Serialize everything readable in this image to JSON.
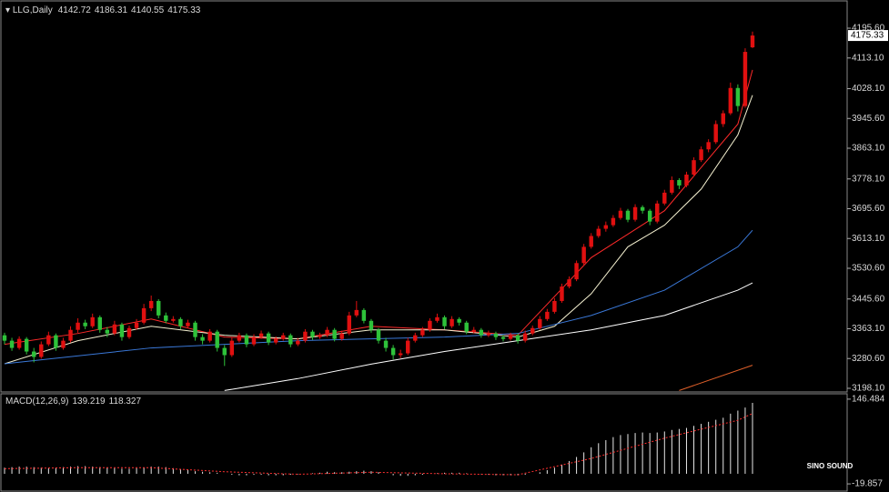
{
  "chart_data": [
    {
      "type": "candlestick",
      "title": "LLG,Daily",
      "up_color": "#e01010",
      "down_color": "#2ec23a",
      "ohlc": [
        [
          3345,
          3352,
          3320,
          3330
        ],
        [
          3330,
          3338,
          3302,
          3310
        ],
        [
          3310,
          3342,
          3305,
          3335
        ],
        [
          3335,
          3340,
          3292,
          3300
        ],
        [
          3300,
          3310,
          3270,
          3285
        ],
        [
          3285,
          3328,
          3280,
          3320
        ],
        [
          3320,
          3355,
          3315,
          3345
        ],
        [
          3345,
          3350,
          3302,
          3310
        ],
        [
          3310,
          3338,
          3305,
          3330
        ],
        [
          3330,
          3370,
          3325,
          3360
        ],
        [
          3360,
          3392,
          3352,
          3380
        ],
        [
          3380,
          3388,
          3362,
          3370
        ],
        [
          3370,
          3405,
          3365,
          3395
        ],
        [
          3395,
          3400,
          3352,
          3360
        ],
        [
          3360,
          3368,
          3340,
          3350
        ],
        [
          3350,
          3385,
          3345,
          3375
        ],
        [
          3375,
          3380,
          3330,
          3340
        ],
        [
          3340,
          3372,
          3335,
          3365
        ],
        [
          3365,
          3390,
          3360,
          3380
        ],
        [
          3380,
          3432,
          3375,
          3420
        ],
        [
          3420,
          3455,
          3412,
          3440
        ],
        [
          3440,
          3445,
          3392,
          3400
        ],
        [
          3400,
          3408,
          3378,
          3385
        ],
        [
          3385,
          3398,
          3380,
          3390
        ],
        [
          3390,
          3395,
          3362,
          3370
        ],
        [
          3370,
          3388,
          3365,
          3380
        ],
        [
          3380,
          3385,
          3330,
          3340
        ],
        [
          3340,
          3348,
          3320,
          3330
        ],
        [
          3330,
          3362,
          3325,
          3355
        ],
        [
          3355,
          3360,
          3300,
          3310
        ],
        [
          3310,
          3318,
          3260,
          3290
        ],
        [
          3290,
          3338,
          3285,
          3330
        ],
        [
          3330,
          3352,
          3325,
          3345
        ],
        [
          3345,
          3350,
          3312,
          3320
        ],
        [
          3320,
          3348,
          3315,
          3340
        ],
        [
          3340,
          3358,
          3335,
          3350
        ],
        [
          3350,
          3355,
          3318,
          3325
        ],
        [
          3325,
          3342,
          3320,
          3335
        ],
        [
          3335,
          3352,
          3330,
          3345
        ],
        [
          3345,
          3350,
          3312,
          3320
        ],
        [
          3320,
          3338,
          3315,
          3330
        ],
        [
          3330,
          3362,
          3325,
          3355
        ],
        [
          3355,
          3360,
          3332,
          3340
        ],
        [
          3340,
          3352,
          3335,
          3345
        ],
        [
          3345,
          3368,
          3340,
          3360
        ],
        [
          3360,
          3365,
          3328,
          3335
        ],
        [
          3335,
          3358,
          3330,
          3350
        ],
        [
          3350,
          3410,
          3345,
          3400
        ],
        [
          3400,
          3440,
          3395,
          3415
        ],
        [
          3415,
          3420,
          3378,
          3385
        ],
        [
          3385,
          3390,
          3352,
          3360
        ],
        [
          3360,
          3365,
          3322,
          3330
        ],
        [
          3330,
          3338,
          3300,
          3310
        ],
        [
          3310,
          3318,
          3278,
          3290
        ],
        [
          3290,
          3305,
          3282,
          3295
        ],
        [
          3295,
          3338,
          3290,
          3330
        ],
        [
          3330,
          3352,
          3325,
          3345
        ],
        [
          3345,
          3368,
          3340,
          3360
        ],
        [
          3360,
          3392,
          3355,
          3385
        ],
        [
          3385,
          3405,
          3380,
          3395
        ],
        [
          3395,
          3400,
          3362,
          3370
        ],
        [
          3370,
          3398,
          3365,
          3390
        ],
        [
          3390,
          3395,
          3372,
          3380
        ],
        [
          3380,
          3385,
          3348,
          3355
        ],
        [
          3355,
          3368,
          3350,
          3360
        ],
        [
          3360,
          3365,
          3338,
          3345
        ],
        [
          3345,
          3358,
          3340,
          3350
        ],
        [
          3350,
          3355,
          3332,
          3340
        ],
        [
          3340,
          3345,
          3328,
          3335
        ],
        [
          3335,
          3352,
          3330,
          3345
        ],
        [
          3345,
          3350,
          3322,
          3330
        ],
        [
          3330,
          3358,
          3325,
          3350
        ],
        [
          3350,
          3372,
          3345,
          3365
        ],
        [
          3365,
          3398,
          3360,
          3390
        ],
        [
          3390,
          3418,
          3385,
          3410
        ],
        [
          3410,
          3448,
          3405,
          3440
        ],
        [
          3440,
          3488,
          3435,
          3480
        ],
        [
          3480,
          3508,
          3475,
          3500
        ],
        [
          3500,
          3552,
          3495,
          3545
        ],
        [
          3545,
          3598,
          3540,
          3590
        ],
        [
          3590,
          3628,
          3585,
          3620
        ],
        [
          3620,
          3648,
          3615,
          3640
        ],
        [
          3640,
          3660,
          3632,
          3650
        ],
        [
          3650,
          3678,
          3645,
          3670
        ],
        [
          3670,
          3698,
          3665,
          3690
        ],
        [
          3690,
          3695,
          3658,
          3665
        ],
        [
          3665,
          3708,
          3660,
          3700
        ],
        [
          3700,
          3705,
          3682,
          3690
        ],
        [
          3690,
          3695,
          3650,
          3660
        ],
        [
          3660,
          3718,
          3655,
          3710
        ],
        [
          3710,
          3748,
          3705,
          3740
        ],
        [
          3740,
          3785,
          3735,
          3775
        ],
        [
          3775,
          3780,
          3750,
          3760
        ],
        [
          3760,
          3798,
          3755,
          3790
        ],
        [
          3790,
          3838,
          3785,
          3830
        ],
        [
          3830,
          3868,
          3825,
          3860
        ],
        [
          3860,
          3888,
          3852,
          3880
        ],
        [
          3880,
          3940,
          3875,
          3930
        ],
        [
          3930,
          3968,
          3922,
          3960
        ],
        [
          3960,
          4045,
          3955,
          4030
        ],
        [
          4030,
          4040,
          3965,
          3980
        ],
        [
          3980,
          4140,
          3975,
          4130
        ],
        [
          4142.72,
          4186.31,
          4140.55,
          4175.33
        ]
      ],
      "lines": [
        {
          "color": "#ff2a2a",
          "x": [
            0,
            10,
            20,
            30,
            40,
            50,
            60,
            70,
            80,
            90,
            100,
            102
          ],
          "values": [
            3320,
            3350,
            3390,
            3340,
            3335,
            3370,
            3360,
            3345,
            3560,
            3690,
            3930,
            4080
          ]
        },
        {
          "color": "#f4f0d0",
          "x": [
            0,
            10,
            20,
            30,
            40,
            50,
            60,
            65,
            70,
            75,
            80,
            85,
            90,
            95,
            100,
            102
          ],
          "values": [
            3266,
            3330,
            3370,
            3345,
            3335,
            3360,
            3360,
            3350,
            3340,
            3370,
            3460,
            3590,
            3650,
            3750,
            3900,
            4010
          ]
        },
        {
          "color": "#3a78d8",
          "x": [
            0,
            20,
            40,
            60,
            70,
            80,
            90,
            100,
            102
          ],
          "values": [
            3266,
            3310,
            3330,
            3340,
            3350,
            3400,
            3470,
            3590,
            3636
          ]
        },
        {
          "color": "#ffffff",
          "x": [
            30,
            40,
            50,
            60,
            70,
            80,
            90,
            100,
            102
          ],
          "values": [
            3192,
            3225,
            3265,
            3300,
            3330,
            3360,
            3400,
            3470,
            3490
          ]
        },
        {
          "color": "#e0602a",
          "x": [
            92,
            102
          ],
          "values": [
            3192,
            3262
          ]
        }
      ],
      "ylim": [
        3190.5,
        4268.7
      ],
      "yticks": [
        {
          "value": 4195.6,
          "label": "4195.60"
        },
        {
          "value": 4113.1,
          "label": "4113.10"
        },
        {
          "value": 4028.1,
          "label": "4028.10"
        },
        {
          "value": 3945.6,
          "label": "3945.60"
        },
        {
          "value": 3863.1,
          "label": "3863.10"
        },
        {
          "value": 3778.1,
          "label": "3778.10"
        },
        {
          "value": 3695.6,
          "label": "3695.60"
        },
        {
          "value": 3613.1,
          "label": "3613.10"
        },
        {
          "value": 3530.6,
          "label": "3530.60"
        },
        {
          "value": 3445.6,
          "label": "3445.60"
        },
        {
          "value": 3363.1,
          "label": "3363.10"
        },
        {
          "value": 3280.6,
          "label": "3280.60"
        },
        {
          "value": 3198.1,
          "label": "3198.10"
        }
      ]
    },
    {
      "type": "macd",
      "title": "MACD(12,26,9)",
      "color": "#e8e8e8",
      "values": [
        12,
        13,
        14,
        14,
        13,
        12,
        11,
        12,
        13,
        14,
        15,
        15,
        14,
        13,
        12,
        11,
        10,
        10,
        11,
        12,
        14,
        14,
        13,
        11,
        9,
        7,
        5,
        4,
        3,
        2,
        0,
        -2,
        -3,
        -3,
        -2,
        -2,
        -3,
        -3,
        -3,
        -2,
        -1,
        0,
        1,
        2,
        4,
        3,
        3,
        4,
        5,
        6,
        5,
        3,
        0,
        -3,
        -4,
        -4,
        -3,
        -2,
        0,
        1,
        2,
        2,
        2,
        1,
        0,
        -1,
        -2,
        -3,
        -3,
        -3,
        -3,
        -2,
        0,
        3,
        7,
        12,
        18,
        25,
        33,
        42,
        52,
        60,
        66,
        72,
        76,
        78,
        80,
        81,
        80,
        81,
        83,
        86,
        88,
        90,
        94,
        98,
        102,
        106,
        110,
        118,
        124,
        130,
        139.219
      ],
      "signal": {
        "color": "#ff3030",
        "x": [
          0,
          10,
          20,
          30,
          40,
          50,
          60,
          70,
          80,
          90,
          100,
          102
        ],
        "values": [
          10,
          12,
          12,
          4,
          -1,
          3,
          0,
          -2,
          30,
          70,
          105,
          118.327
        ]
      },
      "ylim": [
        -34,
        157
      ],
      "yticks": [
        146.484,
        -19.857
      ]
    }
  ],
  "watermark": "SINO SOUND"
}
